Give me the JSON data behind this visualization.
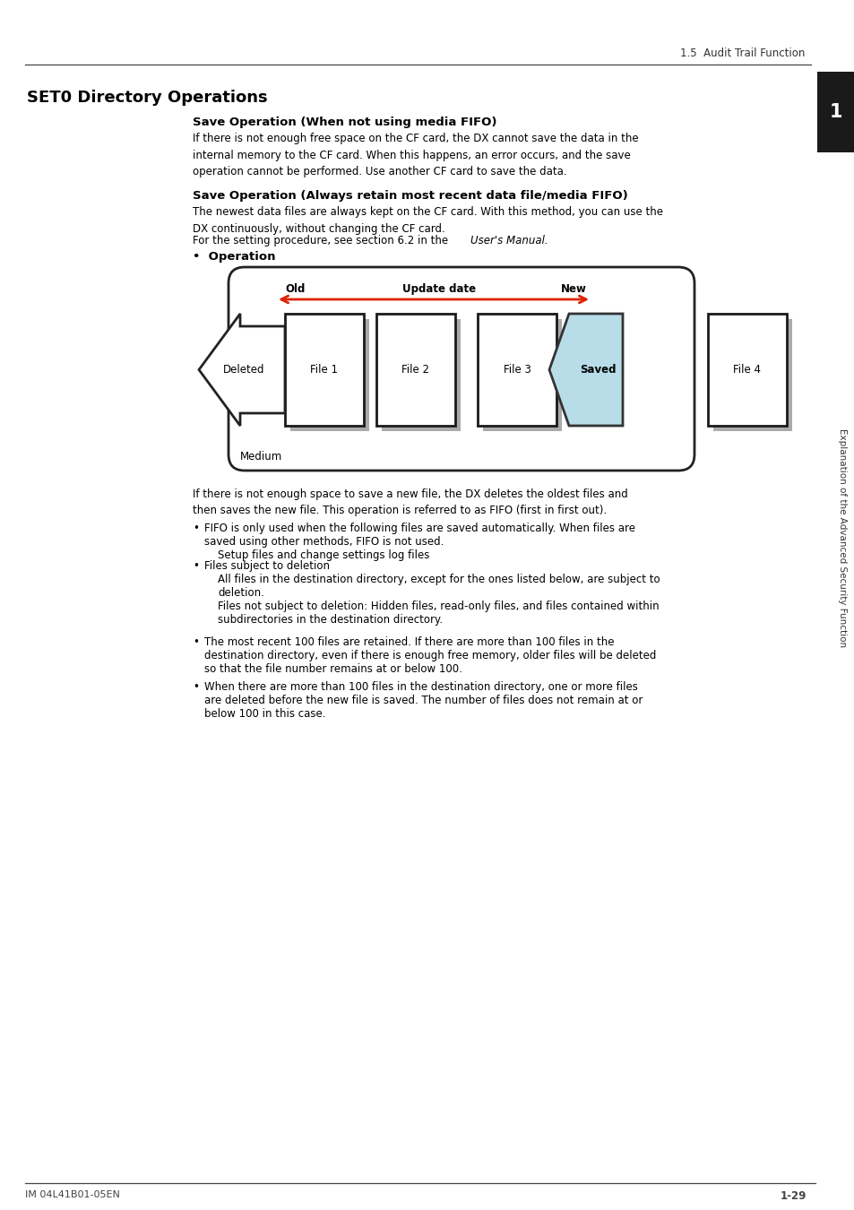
{
  "page_title": "1.5  Audit Trail Function",
  "section_title": "SET0 Directory Operations",
  "sub1_title": "Save Operation (When not using media FIFO)",
  "sub1_body": "If there is not enough free space on the CF card, the DX cannot save the data in the\ninternal memory to the CF card. When this happens, an error occurs, and the save\noperation cannot be performed. Use another CF card to save the data.",
  "sub2_title": "Save Operation (Always retain most recent data file/media FIFO)",
  "sub2_body1": "The newest data files are always kept on the CF card. With this method, you can use the\nDX continuously, without changing the CF card.",
  "sub2_body2a": "For the setting procedure, see section 6.2 in the ",
  "sub2_body2b": "User's Manual",
  "sub2_body2c": ".",
  "op_label": "Operation",
  "lbl_old": "Old",
  "lbl_update": "Update date",
  "lbl_new": "New",
  "lbl_deleted": "Deleted",
  "lbl_file1": "File 1",
  "lbl_file2": "File 2",
  "lbl_file3": "File 3",
  "lbl_saved": "Saved",
  "lbl_file4": "File 4",
  "lbl_medium": "Medium",
  "para1": "If there is not enough space to save a new file, the DX deletes the oldest files and\nthen saves the new file. This operation is referred to as FIFO (first in first out).",
  "bul1a": "FIFO is only used when the following files are saved automatically. When files are",
  "bul1b": "saved using other methods, FIFO is not used.",
  "bul1c": "Setup files and change settings log files",
  "bul2h": "Files subject to deletion",
  "bul2a": "All files in the destination directory, except for the ones listed below, are subject to",
  "bul2b": "deletion.",
  "bul2c": "Files not subject to deletion: Hidden files, read-only files, and files contained within",
  "bul2d": "subdirectories in the destination directory.",
  "bul3a": "The most recent 100 files are retained. If there are more than 100 files in the",
  "bul3b": "destination directory, even if there is enough free memory, older files will be deleted",
  "bul3c": "so that the file number remains at or below 100.",
  "bul4a": "When there are more than 100 files in the destination directory, one or more files",
  "bul4b": "are deleted before the new file is saved. The number of files does not remain at or",
  "bul4c": "below 100 in this case.",
  "footer_left": "IM 04L41B01-05EN",
  "footer_right": "1-29",
  "tab_num": "1",
  "tab_text": "Explanation of the Advanced Security Function",
  "bg": "#ffffff",
  "tab_bg": "#1a1a1a",
  "arrow_color": "#dd2200",
  "saved_fill": "#b8dde8",
  "shadow_color": "#aaaaaa"
}
